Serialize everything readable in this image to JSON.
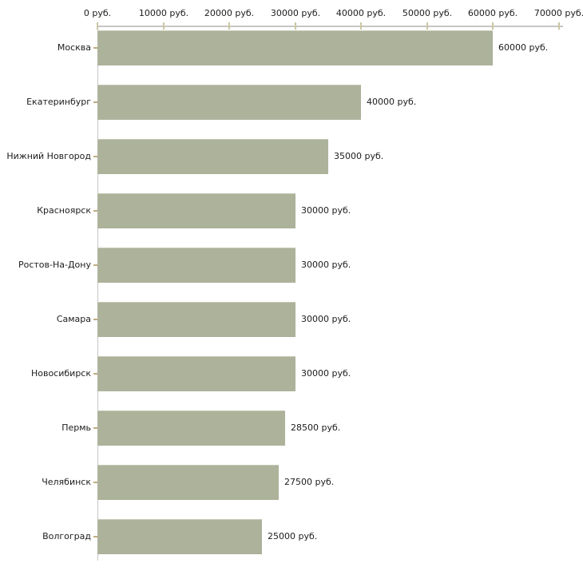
{
  "chart_data": {
    "type": "bar",
    "orientation": "horizontal",
    "categories": [
      "Москва",
      "Екатеринбург",
      "Нижний Новгород",
      "Красноярск",
      "Ростов-На-Дону",
      "Самара",
      "Новосибирск",
      "Пермь",
      "Челябинск",
      "Волгоград"
    ],
    "values": [
      60000,
      40000,
      35000,
      30000,
      30000,
      30000,
      30000,
      28500,
      27500,
      25000
    ],
    "value_labels": [
      "60000 руб.",
      "40000 руб.",
      "35000 руб.",
      "30000 руб.",
      "30000 руб.",
      "30000 руб.",
      "30000 руб.",
      "28500 руб.",
      "27500 руб.",
      "25000 руб."
    ],
    "x_axis": {
      "position": "top",
      "min": 0,
      "max": 70000,
      "ticks": [
        0,
        10000,
        20000,
        30000,
        40000,
        50000,
        60000,
        70000
      ],
      "tick_labels": [
        "0 руб.",
        "10000 руб.",
        "20000 руб.",
        "30000 руб.",
        "40000 руб.",
        "50000 руб.",
        "60000 руб.",
        "70000 руб."
      ]
    },
    "grid": false,
    "legend": false
  },
  "colors": {
    "background": "#ffffff",
    "bar_fill": "#adb29b",
    "bar_top_edge": "#c5c9b6",
    "axis_line": "#c6c6c6",
    "x_tick": "#cbc7a2",
    "category_tick": "#bfab7e",
    "text": "#1c1c1c"
  }
}
